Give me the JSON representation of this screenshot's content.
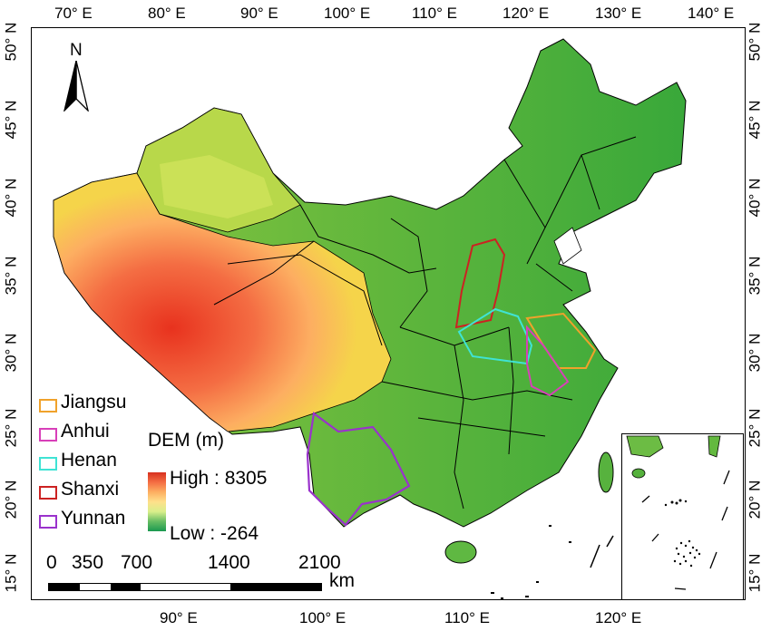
{
  "axes": {
    "top_labels": [
      "70° E",
      "80° E",
      "90° E",
      "100° E",
      "110° E",
      "120° E",
      "130° E",
      "140° E"
    ],
    "bottom_labels": [
      "90° E",
      "100° E",
      "110° E",
      "120° E"
    ],
    "left_labels": [
      "50° N",
      "45° N",
      "40° N",
      "35° N",
      "30° N",
      "25° N",
      "20° N",
      "15° N"
    ],
    "right_labels": [
      "50° N",
      "45° N",
      "40° N",
      "35° N",
      "30° N",
      "25° N",
      "20° N",
      "15° N"
    ]
  },
  "north_arrow": {
    "label": "N"
  },
  "legend": {
    "items": [
      {
        "name": "Jiangsu",
        "color": "#f0a22b"
      },
      {
        "name": "Anhui",
        "color": "#d83fb9"
      },
      {
        "name": "Henan",
        "color": "#3fe3d4"
      },
      {
        "name": "Shanxi",
        "color": "#cc2222"
      },
      {
        "name": "Yunnan",
        "color": "#9a32cc"
      }
    ]
  },
  "dem": {
    "title": "DEM (m)",
    "high_label": "High : 8305",
    "low_label": "Low : -264",
    "colors": [
      "#d7301f",
      "#f46d43",
      "#fdae61",
      "#fee08b",
      "#d9ef8b",
      "#66bd63",
      "#1a9850"
    ]
  },
  "scale_bar": {
    "labels": [
      "0",
      "350",
      "700",
      "1400",
      "2100"
    ],
    "unit": "km"
  }
}
